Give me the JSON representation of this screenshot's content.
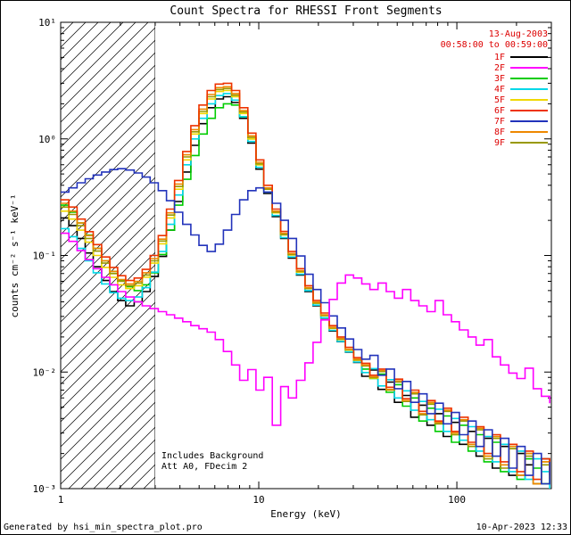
{
  "header": {
    "date_line1": "13-Aug-2003",
    "date_line2": "00:58:00 to 00:59:00"
  },
  "annotations": {
    "note1": "Includes Background",
    "note2": "Att A0, FDecim 2"
  },
  "footer": {
    "left": "Generated by hsi_min_spectra_plot.pro",
    "right": "10-Apr-2023 12:33"
  },
  "chart_data": {
    "type": "line",
    "title": "Count Spectra for RHESSI Front Segments",
    "xlabel": "Energy (keV)",
    "ylabel": "counts cm⁻² s⁻¹ keV⁻¹",
    "x_scale": "log",
    "y_scale": "log",
    "x_range": [
      1,
      300
    ],
    "y_range": [
      0.001,
      10
    ],
    "grid": false,
    "legend_position": "top-right-inside",
    "legend_label_color": "#dd0000",
    "date_color": "#dd0000",
    "x_ticks": [
      {
        "value": 1,
        "label": "1"
      },
      {
        "value": 10,
        "label": "10"
      },
      {
        "value": 100,
        "label": "100"
      }
    ],
    "y_ticks": [
      {
        "value": 0.001,
        "label": "10⁻³"
      },
      {
        "value": 0.01,
        "label": "10⁻²"
      },
      {
        "value": 0.1,
        "label": "10⁻¹"
      },
      {
        "value": 1,
        "label": "10⁰"
      },
      {
        "value": 10,
        "label": "10¹"
      }
    ],
    "hatch_region": {
      "x_from": 1,
      "x_to": 3
    },
    "step_mode": true,
    "energies_kev": [
      1.0,
      1.1,
      1.21,
      1.33,
      1.46,
      1.61,
      1.77,
      1.94,
      2.13,
      2.35,
      2.58,
      2.83,
      3.11,
      3.42,
      3.76,
      4.13,
      4.54,
      4.99,
      5.49,
      6.03,
      6.63,
      7.29,
      8.01,
      8.81,
      9.68,
      10.6,
      11.7,
      12.9,
      14.1,
      15.5,
      17.1,
      18.8,
      20.6,
      22.7,
      24.9,
      27.4,
      30.1,
      33.1,
      36.4,
      40.0,
      44.0,
      48.4,
      53.2,
      58.5,
      64.3,
      70.7,
      77.7,
      85.4,
      93.9,
      103,
      114,
      125,
      137,
      151,
      166,
      183,
      201,
      221,
      243,
      267,
      294
    ],
    "series": [
      {
        "name": "1F",
        "color": "#000000",
        "values": [
          0.21,
          0.18,
          0.14,
          0.105,
          0.08,
          0.061,
          0.049,
          0.041,
          0.037,
          0.04,
          0.049,
          0.066,
          0.098,
          0.165,
          0.29,
          0.52,
          0.88,
          1.35,
          1.85,
          2.2,
          2.3,
          2.05,
          1.5,
          0.92,
          0.55,
          0.34,
          0.215,
          0.14,
          0.095,
          0.068,
          0.049,
          0.037,
          0.029,
          0.0225,
          0.0182,
          0.0148,
          0.0121,
          0.0092,
          0.0104,
          0.0071,
          0.0082,
          0.0055,
          0.0063,
          0.0041,
          0.0052,
          0.0035,
          0.0044,
          0.0028,
          0.0037,
          0.0024,
          0.0031,
          0.0019,
          0.0027,
          0.0015,
          0.0023,
          0.0013,
          0.002,
          0.0016,
          0.0011,
          0.0018,
          0.0013
        ]
      },
      {
        "name": "2F",
        "color": "#ff00ff",
        "values": [
          0.155,
          0.132,
          0.11,
          0.092,
          0.077,
          0.065,
          0.056,
          0.049,
          0.044,
          0.04,
          0.037,
          0.035,
          0.033,
          0.031,
          0.029,
          0.027,
          0.025,
          0.0235,
          0.022,
          0.019,
          0.015,
          0.0115,
          0.0085,
          0.0105,
          0.007,
          0.009,
          0.0035,
          0.0075,
          0.006,
          0.0085,
          0.012,
          0.018,
          0.028,
          0.042,
          0.058,
          0.068,
          0.064,
          0.057,
          0.051,
          0.058,
          0.049,
          0.043,
          0.051,
          0.041,
          0.037,
          0.033,
          0.041,
          0.031,
          0.027,
          0.023,
          0.02,
          0.017,
          0.019,
          0.0135,
          0.0115,
          0.0098,
          0.0088,
          0.0108,
          0.0072,
          0.0062,
          0.0054
        ]
      },
      {
        "name": "3F",
        "color": "#00cc00",
        "values": [
          0.27,
          0.235,
          0.19,
          0.15,
          0.115,
          0.09,
          0.073,
          0.061,
          0.054,
          0.05,
          0.056,
          0.071,
          0.102,
          0.165,
          0.27,
          0.45,
          0.72,
          1.1,
          1.5,
          1.85,
          2.0,
          1.95,
          1.55,
          1.0,
          0.6,
          0.37,
          0.235,
          0.152,
          0.102,
          0.073,
          0.052,
          0.039,
          0.0305,
          0.0238,
          0.0191,
          0.0155,
          0.0127,
          0.0106,
          0.0088,
          0.0096,
          0.0067,
          0.0078,
          0.0051,
          0.006,
          0.0038,
          0.0049,
          0.0031,
          0.0042,
          0.0025,
          0.0035,
          0.0021,
          0.0029,
          0.0017,
          0.0025,
          0.0014,
          0.0022,
          0.0012,
          0.0018,
          0.0015,
          0.0011,
          0.0016
        ]
      },
      {
        "name": "4F",
        "color": "#00d8e8",
        "values": [
          0.17,
          0.145,
          0.115,
          0.09,
          0.071,
          0.057,
          0.048,
          0.043,
          0.041,
          0.044,
          0.053,
          0.072,
          0.108,
          0.185,
          0.33,
          0.6,
          1.0,
          1.5,
          2.0,
          2.35,
          2.45,
          2.15,
          1.55,
          0.95,
          0.57,
          0.35,
          0.22,
          0.142,
          0.097,
          0.069,
          0.05,
          0.0375,
          0.0292,
          0.0228,
          0.0183,
          0.0149,
          0.0122,
          0.0099,
          0.0107,
          0.0076,
          0.0086,
          0.006,
          0.0069,
          0.0047,
          0.0056,
          0.0039,
          0.0048,
          0.0031,
          0.004,
          0.0026,
          0.0034,
          0.0021,
          0.0028,
          0.0017,
          0.0024,
          0.0014,
          0.0021,
          0.0012,
          0.0018,
          0.0014,
          0.001
        ]
      },
      {
        "name": "5F",
        "color": "#f0d800",
        "values": [
          0.24,
          0.205,
          0.165,
          0.13,
          0.1,
          0.079,
          0.065,
          0.056,
          0.052,
          0.055,
          0.065,
          0.086,
          0.126,
          0.21,
          0.37,
          0.66,
          1.1,
          1.65,
          2.2,
          2.55,
          2.6,
          2.3,
          1.65,
          1.0,
          0.6,
          0.37,
          0.232,
          0.15,
          0.101,
          0.072,
          0.052,
          0.039,
          0.0304,
          0.0237,
          0.019,
          0.0154,
          0.0126,
          0.0113,
          0.0089,
          0.0101,
          0.007,
          0.0083,
          0.0056,
          0.0066,
          0.0043,
          0.0054,
          0.0036,
          0.0046,
          0.0029,
          0.0038,
          0.0024,
          0.0032,
          0.0019,
          0.0027,
          0.0016,
          0.0023,
          0.0013,
          0.002,
          0.0011,
          0.0017,
          0.0012
        ]
      },
      {
        "name": "6F",
        "color": "#ee3300",
        "values": [
          0.3,
          0.26,
          0.205,
          0.16,
          0.124,
          0.097,
          0.079,
          0.067,
          0.061,
          0.064,
          0.076,
          0.1,
          0.148,
          0.25,
          0.44,
          0.78,
          1.3,
          1.95,
          2.6,
          2.95,
          3.0,
          2.6,
          1.85,
          1.12,
          0.66,
          0.4,
          0.25,
          0.161,
          0.108,
          0.077,
          0.055,
          0.0412,
          0.0321,
          0.025,
          0.02,
          0.0163,
          0.0133,
          0.0119,
          0.0094,
          0.0106,
          0.0074,
          0.0087,
          0.0059,
          0.007,
          0.0046,
          0.0057,
          0.0038,
          0.0049,
          0.0031,
          0.0041,
          0.0025,
          0.0034,
          0.002,
          0.0029,
          0.0017,
          0.0024,
          0.0014,
          0.0021,
          0.0012,
          0.0018,
          0.0013
        ]
      },
      {
        "name": "7F",
        "color": "#2233bb",
        "values": [
          0.35,
          0.38,
          0.42,
          0.455,
          0.49,
          0.52,
          0.545,
          0.555,
          0.54,
          0.51,
          0.47,
          0.42,
          0.36,
          0.295,
          0.235,
          0.185,
          0.15,
          0.122,
          0.108,
          0.125,
          0.165,
          0.225,
          0.3,
          0.36,
          0.38,
          0.35,
          0.28,
          0.2,
          0.14,
          0.099,
          0.069,
          0.051,
          0.0393,
          0.0303,
          0.0239,
          0.0192,
          0.0156,
          0.0129,
          0.0139,
          0.0094,
          0.0106,
          0.0072,
          0.0083,
          0.0055,
          0.0065,
          0.0044,
          0.0054,
          0.0036,
          0.0045,
          0.0029,
          0.0038,
          0.0023,
          0.0032,
          0.0019,
          0.0027,
          0.0015,
          0.0023,
          0.0013,
          0.002,
          0.0011,
          0.0017
        ]
      },
      {
        "name": "8F",
        "color": "#ee8800",
        "values": [
          0.28,
          0.24,
          0.19,
          0.148,
          0.115,
          0.09,
          0.073,
          0.062,
          0.057,
          0.06,
          0.071,
          0.094,
          0.138,
          0.232,
          0.41,
          0.73,
          1.2,
          1.8,
          2.4,
          2.75,
          2.8,
          2.45,
          1.75,
          1.06,
          0.63,
          0.38,
          0.24,
          0.155,
          0.104,
          0.074,
          0.053,
          0.0398,
          0.031,
          0.0242,
          0.0194,
          0.0157,
          0.0129,
          0.0115,
          0.0091,
          0.0103,
          0.0071,
          0.0084,
          0.0057,
          0.0067,
          0.0044,
          0.0055,
          0.0037,
          0.0047,
          0.003,
          0.0039,
          0.0024,
          0.0033,
          0.0019,
          0.0028,
          0.0016,
          0.0023,
          0.0013,
          0.002,
          0.0011,
          0.0017,
          0.0012
        ]
      },
      {
        "name": "9F",
        "color": "#999900",
        "values": [
          0.26,
          0.225,
          0.18,
          0.14,
          0.109,
          0.086,
          0.07,
          0.06,
          0.055,
          0.058,
          0.068,
          0.09,
          0.133,
          0.222,
          0.39,
          0.7,
          1.15,
          1.72,
          2.3,
          2.65,
          2.7,
          2.37,
          1.7,
          1.03,
          0.61,
          0.37,
          0.235,
          0.151,
          0.102,
          0.073,
          0.052,
          0.0391,
          0.0306,
          0.0239,
          0.0191,
          0.0156,
          0.0127,
          0.0113,
          0.009,
          0.0101,
          0.007,
          0.0082,
          0.0056,
          0.0065,
          0.0043,
          0.0053,
          0.0036,
          0.0046,
          0.0029,
          0.0038,
          0.0023,
          0.0032,
          0.0018,
          0.0027,
          0.0015,
          0.0022,
          0.0013,
          0.0019,
          0.0011,
          0.0016,
          0.0012
        ]
      }
    ]
  }
}
